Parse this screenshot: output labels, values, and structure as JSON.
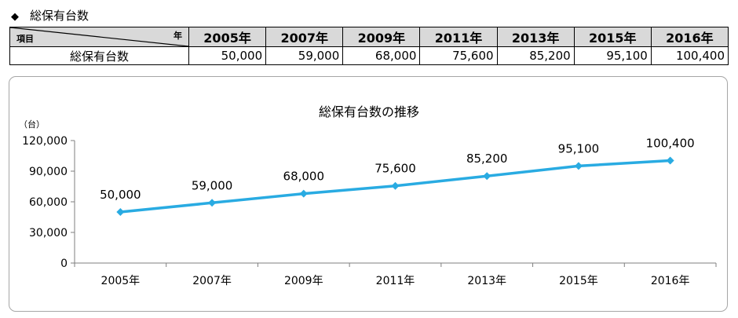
{
  "heading": {
    "bullet": "◆",
    "title": "総保有台数"
  },
  "table": {
    "corner_row_label": "項目",
    "corner_col_label": "年",
    "years": [
      "2005年",
      "2007年",
      "2009年",
      "2011年",
      "2013年",
      "2015年",
      "2016年"
    ],
    "row_label": "総保有台数",
    "values": [
      "50,000",
      "59,000",
      "68,000",
      "75,600",
      "85,200",
      "95,100",
      "100,400"
    ]
  },
  "colors": {
    "line": "#29abe2",
    "header_bg": "#d9d9d9",
    "axis": "#7f7f7f"
  },
  "chart_data": {
    "type": "line",
    "title": "総保有台数の推移",
    "ylabel": "（台）",
    "xlabel": "",
    "categories": [
      "2005年",
      "2007年",
      "2009年",
      "2011年",
      "2013年",
      "2015年",
      "2016年"
    ],
    "series": [
      {
        "name": "総保有台数",
        "values": [
          50000,
          59000,
          68000,
          75600,
          85200,
          95100,
          100400
        ]
      }
    ],
    "data_labels": [
      "50,000",
      "59,000",
      "68,000",
      "75,600",
      "85,200",
      "95,100",
      "100,400"
    ],
    "yticks": [
      0,
      30000,
      60000,
      90000,
      120000
    ],
    "ytick_labels": [
      "0",
      "30,000",
      "60,000",
      "90,000",
      "120,000"
    ],
    "ylim": [
      0,
      120000
    ],
    "marker": "diamond",
    "grid": false,
    "legend": "none"
  }
}
